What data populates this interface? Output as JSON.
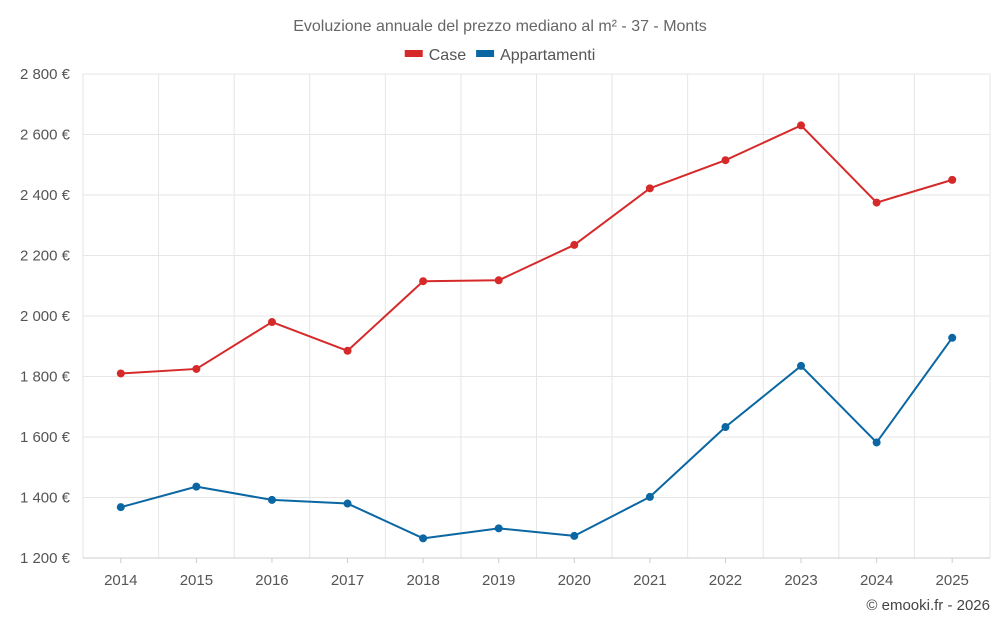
{
  "chart_data": {
    "type": "line",
    "title": "Evoluzione annuale del prezzo mediano al m² - 37 - Monts",
    "categories": [
      "2014",
      "2015",
      "2016",
      "2017",
      "2018",
      "2019",
      "2020",
      "2021",
      "2022",
      "2023",
      "2024",
      "2025"
    ],
    "series": [
      {
        "name": "Case",
        "color": "#d62a2a",
        "values": [
          1810,
          1825,
          1980,
          1885,
          2115,
          2118,
          2235,
          2422,
          2515,
          2630,
          2375,
          2450
        ]
      },
      {
        "name": "Appartamenti",
        "color": "#0a67a3",
        "values": [
          1368,
          1436,
          1392,
          1380,
          1265,
          1298,
          1273,
          1402,
          1633,
          1835,
          1582,
          1928
        ]
      }
    ],
    "yticks": [
      1200,
      1400,
      1600,
      1800,
      2000,
      2200,
      2400,
      2600,
      2800
    ],
    "ytick_labels": [
      "1 200 €",
      "1 400 €",
      "1 600 €",
      "1 800 €",
      "2 000 €",
      "2 200 €",
      "2 400 €",
      "2 600 €",
      "2 800 €"
    ],
    "ylim": [
      1200,
      2800
    ],
    "xlabel": "",
    "ylabel": "",
    "grid": true,
    "legend_position": "top-center"
  },
  "credit": "© emooki.fr - 2026"
}
